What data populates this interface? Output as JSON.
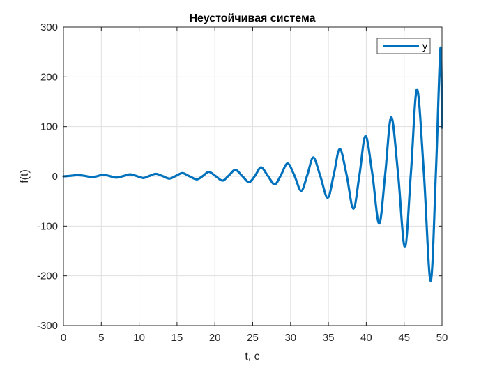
{
  "chart_data": {
    "type": "line",
    "title": "Неустойчивая система",
    "xlabel": "t, c",
    "ylabel": "f(t)",
    "xlim": [
      0,
      50
    ],
    "ylim": [
      -300,
      300
    ],
    "xticks": [
      0,
      5,
      10,
      15,
      20,
      25,
      30,
      35,
      40,
      45,
      50
    ],
    "yticks": [
      -300,
      -200,
      -100,
      0,
      100,
      200,
      300
    ],
    "xtick_labels": [
      "0",
      "5",
      "10",
      "15",
      "20",
      "25",
      "30",
      "35",
      "40",
      "45",
      "50"
    ],
    "ytick_labels": [
      "-300",
      "-200",
      "-100",
      "0",
      "100",
      "200",
      "300"
    ],
    "grid": true,
    "legend_position": "top-right",
    "series": [
      {
        "name": "y",
        "color": "#0072BD",
        "points": [
          [
            0,
            0
          ],
          [
            0.5,
            0.5
          ],
          [
            1,
            1.2
          ],
          [
            1.9,
            2.5
          ],
          [
            2.8,
            1.0
          ],
          [
            3.5,
            -0.8
          ],
          [
            4.3,
            -0.3
          ],
          [
            5.2,
            3.2
          ],
          [
            6.0,
            1.0
          ],
          [
            7.0,
            -2.5
          ],
          [
            8.0,
            1.0
          ],
          [
            8.8,
            4.0
          ],
          [
            9.6,
            1.0
          ],
          [
            10.5,
            -3.3
          ],
          [
            11.3,
            0.5
          ],
          [
            12.2,
            5.0
          ],
          [
            13.1,
            0.5
          ],
          [
            14.0,
            -4.5
          ],
          [
            14.8,
            0.5
          ],
          [
            15.7,
            6.5
          ],
          [
            16.6,
            0.5
          ],
          [
            17.6,
            -6.0
          ],
          [
            18.4,
            0.5
          ],
          [
            19.2,
            9.0
          ],
          [
            20.1,
            0.5
          ],
          [
            21.0,
            -8.5
          ],
          [
            21.8,
            1.0
          ],
          [
            22.7,
            13.0
          ],
          [
            23.6,
            1.0
          ],
          [
            24.5,
            -11.5
          ],
          [
            25.3,
            1.0
          ],
          [
            26.1,
            18.0
          ],
          [
            27.0,
            1.0
          ],
          [
            27.9,
            -16.0
          ],
          [
            28.7,
            1.5
          ],
          [
            29.6,
            26.0
          ],
          [
            30.5,
            2.0
          ],
          [
            31.4,
            -29.0
          ],
          [
            32.2,
            2.0
          ],
          [
            33.0,
            38.0
          ],
          [
            33.9,
            2.0
          ],
          [
            34.9,
            -43.0
          ],
          [
            35.7,
            3.0
          ],
          [
            36.5,
            55.0
          ],
          [
            37.4,
            3.0
          ],
          [
            38.3,
            -65.0
          ],
          [
            39.1,
            3.0
          ],
          [
            39.9,
            81.0
          ],
          [
            40.8,
            5.0
          ],
          [
            41.7,
            -95.0
          ],
          [
            42.5,
            5.0
          ],
          [
            43.3,
            119.0
          ],
          [
            44.2,
            5.0
          ],
          [
            45.1,
            -142.0
          ],
          [
            45.9,
            8.0
          ],
          [
            46.7,
            175.0
          ],
          [
            47.6,
            8.0
          ],
          [
            48.5,
            -210.0
          ],
          [
            49.2,
            10.0
          ],
          [
            49.8,
            258.0
          ],
          [
            50.0,
            98.0
          ]
        ]
      }
    ]
  }
}
